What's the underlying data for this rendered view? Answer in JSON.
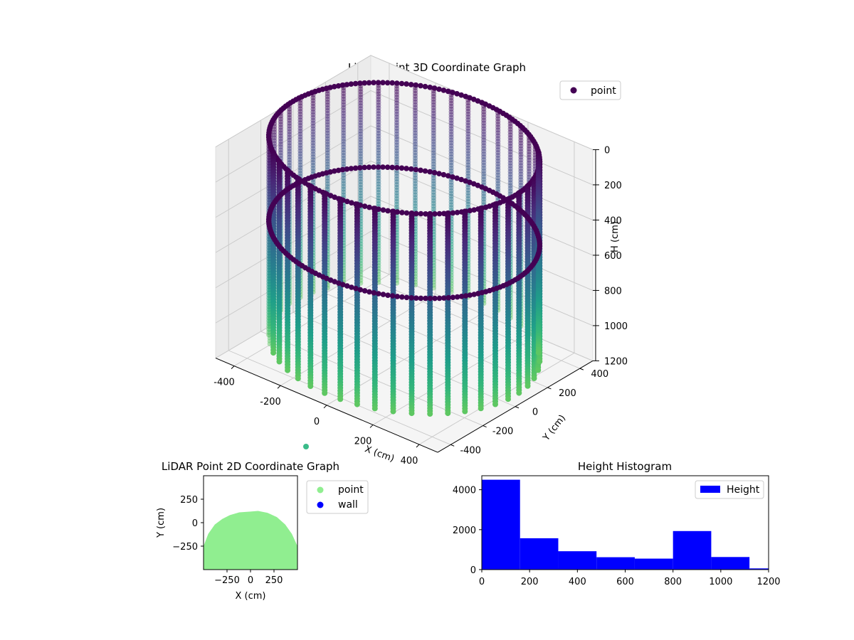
{
  "chart_data": [
    {
      "type": "scatter3d",
      "title": "LiDAR Point 3D Coordinate Graph",
      "xlabel": "X (cm)",
      "ylabel": "Y (cm)",
      "zlabel": "H (cm)",
      "xticks": [
        -400,
        -200,
        0,
        200,
        400
      ],
      "yticks": [
        -400,
        -200,
        0,
        200,
        400
      ],
      "zticks": [
        0,
        200,
        400,
        600,
        800,
        1000,
        1200
      ],
      "xlim": [
        -480,
        480
      ],
      "ylim": [
        -480,
        480
      ],
      "zlim": [
        1200,
        0
      ],
      "cylinder_radius": 480,
      "series": [
        {
          "name": "point",
          "color": "#440154"
        }
      ],
      "colormap": "viridis",
      "legend": "top-right",
      "grid": true
    },
    {
      "type": "scatter",
      "title": "LiDAR Point 2D Coordinate Graph",
      "xlabel": "X (cm)",
      "ylabel": "Y (cm)",
      "xticks": [
        -250,
        0,
        250
      ],
      "yticks": [
        250,
        0,
        -250
      ],
      "xlim": [
        -500,
        500
      ],
      "ylim": [
        -500,
        500
      ],
      "series": [
        {
          "name": "point",
          "color": "#90ee90",
          "outline": [
            [
              -500,
              -500
            ],
            [
              -500,
              -250
            ],
            [
              -450,
              -120
            ],
            [
              -380,
              -20
            ],
            [
              -300,
              40
            ],
            [
              -220,
              80
            ],
            [
              -120,
              110
            ],
            [
              0,
              118
            ],
            [
              80,
              125
            ],
            [
              180,
              105
            ],
            [
              280,
              60
            ],
            [
              370,
              -20
            ],
            [
              440,
              -120
            ],
            [
              500,
              -250
            ],
            [
              500,
              -500
            ]
          ]
        },
        {
          "name": "wall",
          "color": "#0000ff"
        }
      ],
      "legend": "outside-right"
    },
    {
      "type": "bar",
      "title": "Height Histogram",
      "xticks": [
        0,
        200,
        400,
        600,
        800,
        1000,
        1200
      ],
      "yticks": [
        0,
        2000,
        4000
      ],
      "xlim": [
        0,
        1200
      ],
      "ylim": [
        0,
        4700
      ],
      "bin_edges": [
        0,
        160,
        320,
        480,
        640,
        800,
        960,
        1120,
        1280
      ],
      "values": [
        4500,
        1570,
        920,
        620,
        550,
        1930,
        630,
        60
      ],
      "series": [
        {
          "name": "Height",
          "color": "#0000ff"
        }
      ],
      "legend": "top-right"
    }
  ]
}
